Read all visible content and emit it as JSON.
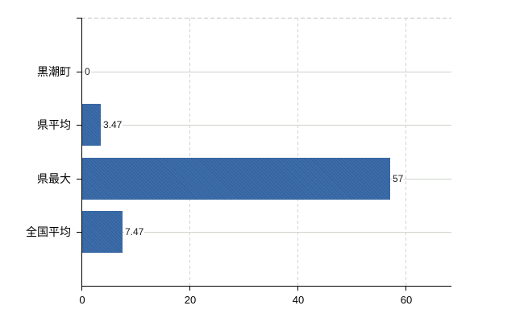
{
  "chart_data": {
    "type": "bar",
    "orientation": "horizontal",
    "title": "",
    "xlabel": "",
    "ylabel": "",
    "categories": [
      "黒潮町",
      "県平均",
      "県最大",
      "全国平均"
    ],
    "values": [
      0,
      3.47,
      57,
      7.47
    ],
    "value_labels": [
      "0",
      "3.47",
      "57",
      "7.47"
    ],
    "xticks": [
      0,
      20,
      40,
      60
    ],
    "xtick_labels": [
      "0",
      "20",
      "40",
      "60"
    ],
    "xlim": [
      0,
      68.5
    ],
    "grid": true,
    "legend": "none",
    "colors": {
      "bar": "#3c6dab",
      "bar_stripe": "#336099",
      "h_gridline": "#ccd3ca",
      "v_gridline": "#d6d2d6",
      "top_border": "#c2c2c2",
      "axis": "#000000",
      "text": "#000000"
    }
  }
}
